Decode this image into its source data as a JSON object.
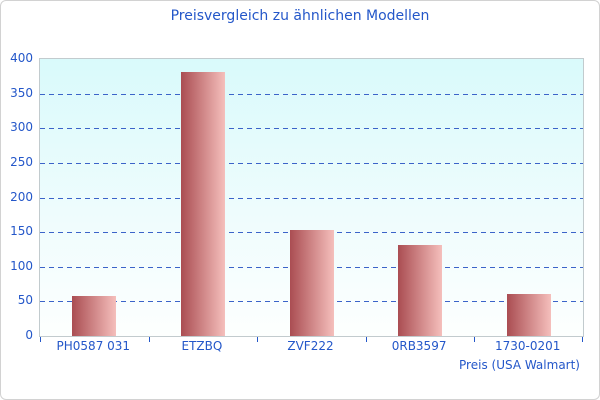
{
  "page": {
    "title": "Preisvergleich zu ähnlichen Modellen"
  },
  "chart_data": {
    "type": "bar",
    "title": "Preisvergleich zu ähnlichen Modellen",
    "categories": [
      "PH0587 031",
      "ETZBQ",
      "ZVF222",
      "0RB3597",
      "1730-0201"
    ],
    "values": [
      58,
      381,
      153,
      131,
      61
    ],
    "xlabel": "Preis (USA Walmart)",
    "ylabel": "",
    "ylim": [
      0,
      400
    ],
    "ytick_step": 50,
    "grid": "horizontal-dashed",
    "legend": "none",
    "colors": {
      "text": "#2457c9",
      "gridline": "#3b63c9",
      "bar_gradient_left": "#aa4d52",
      "bar_gradient_right": "#f5bfbc",
      "plot_bg_top": "#d9fafb",
      "plot_bg_bottom": "#fdfffe",
      "plot_border": "#c2cbce"
    }
  }
}
